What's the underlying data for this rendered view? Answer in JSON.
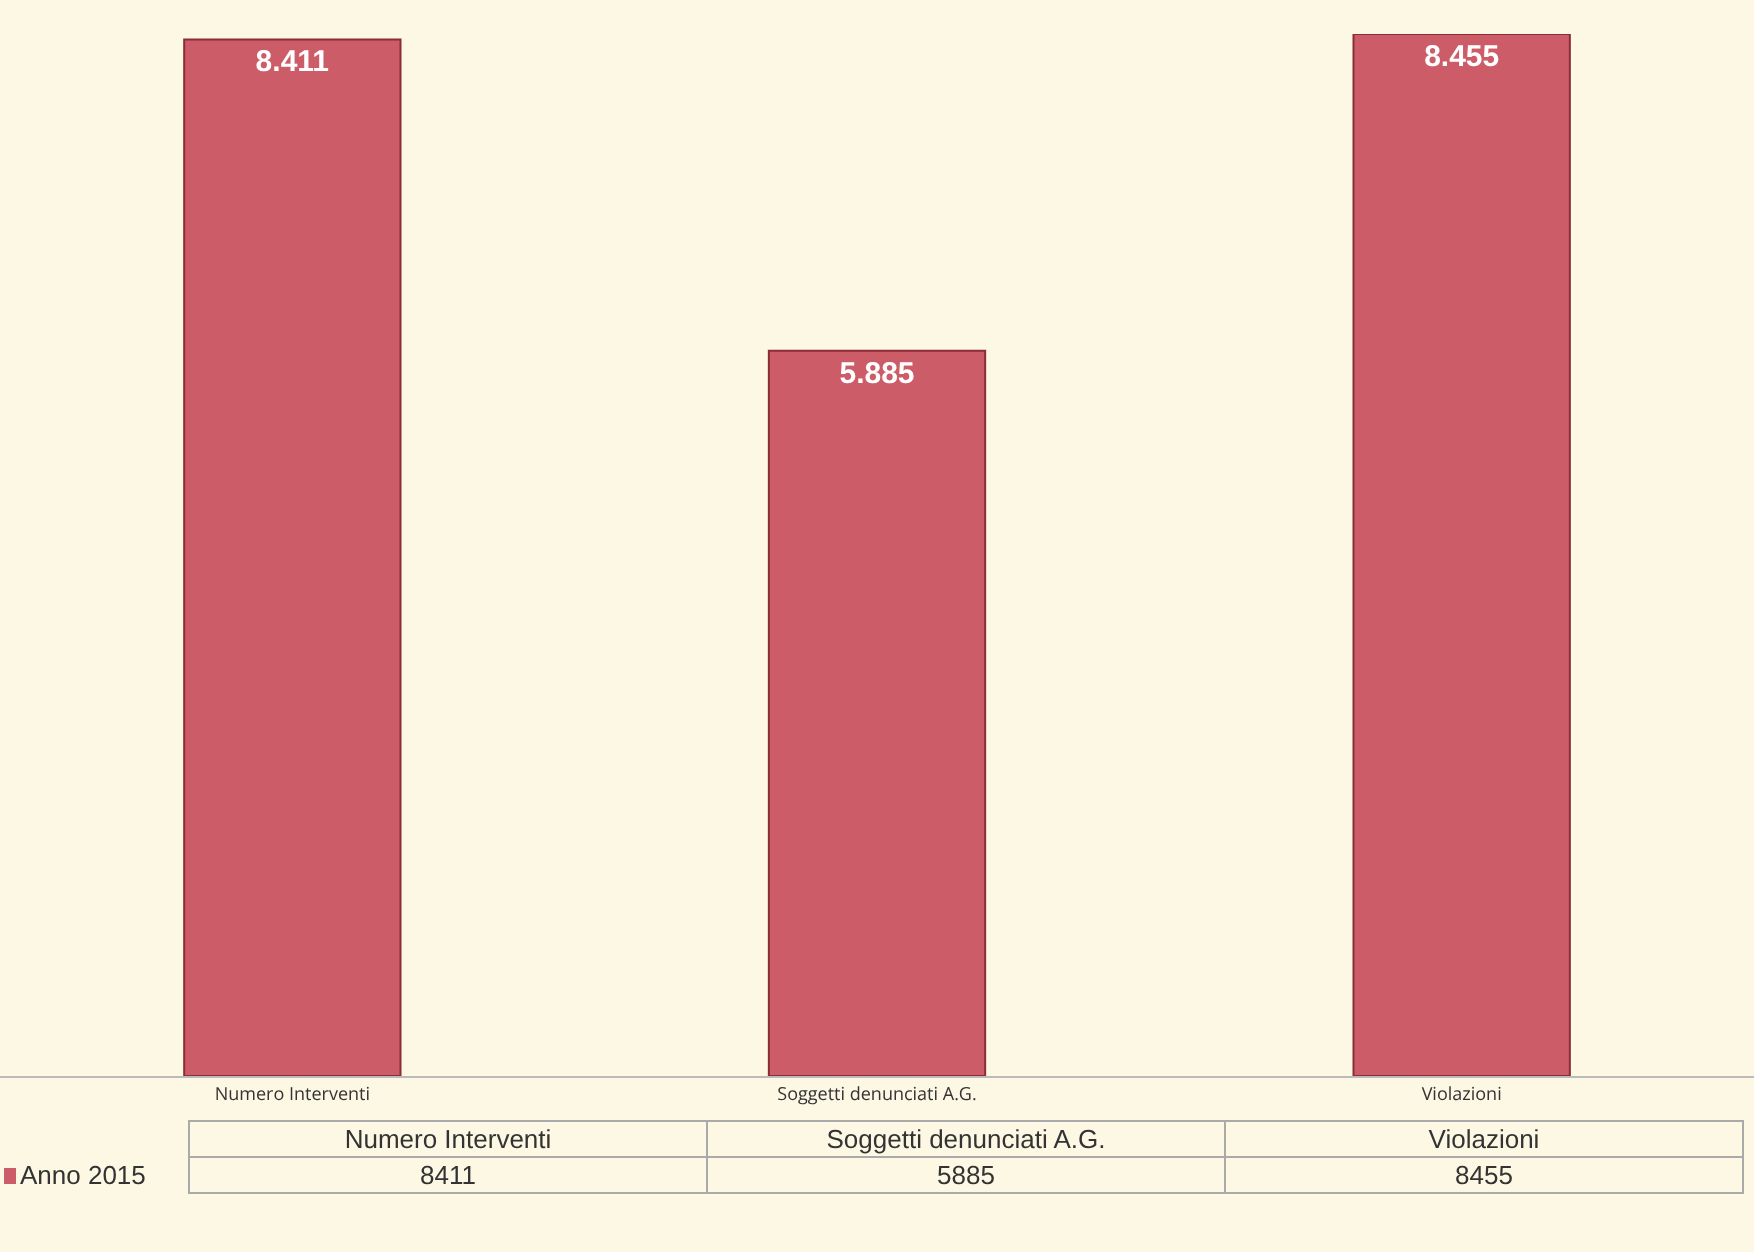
{
  "chart_data": {
    "type": "bar",
    "categories": [
      "Numero Interventi",
      "Soggetti denunciati A.G.",
      "Violazioni"
    ],
    "series": [
      {
        "name": "Anno 2015",
        "color": "#cd5c69",
        "values": [
          8411,
          5885,
          8455
        ],
        "value_labels": [
          "8.411",
          "5.885",
          "8.455"
        ]
      }
    ],
    "annotations": [
      "8411",
      "5885",
      "8455"
    ],
    "grid": false
  }
}
